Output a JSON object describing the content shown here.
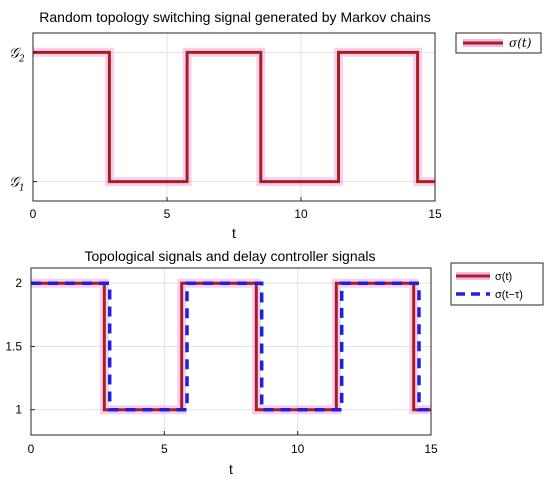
{
  "chart_data": [
    {
      "type": "line",
      "title": "Random topology switching signal generated by Markov chains",
      "xlabel": "t",
      "ylabel": "",
      "xlim": [
        0,
        15
      ],
      "ylim": [
        0.85,
        2.15
      ],
      "xticks": [
        0,
        5,
        10,
        15
      ],
      "yticks": [
        {
          "value": 1,
          "label": "𝒢",
          "sub": "1"
        },
        {
          "value": 2,
          "label": "𝒢",
          "sub": "2"
        }
      ],
      "grid": true,
      "legend_position": "outside-top-right",
      "series": [
        {
          "name": "σ(t)",
          "color": "#a8201a",
          "x": [
            0,
            2.85,
            2.85,
            5.75,
            5.75,
            8.5,
            8.5,
            11.4,
            11.4,
            14.35,
            14.35,
            15
          ],
          "y": [
            2,
            2,
            1,
            1,
            2,
            2,
            1,
            1,
            2,
            2,
            1,
            1
          ]
        }
      ]
    },
    {
      "type": "line",
      "title": "Topological signals and delay controller signals",
      "xlabel": "t",
      "ylabel": "",
      "xlim": [
        0,
        15
      ],
      "ylim": [
        0.8,
        2.12
      ],
      "xticks": [
        0,
        5,
        10,
        15
      ],
      "yticks": [
        {
          "value": 1,
          "label": "1"
        },
        {
          "value": 1.5,
          "label": "1.5"
        },
        {
          "value": 2,
          "label": "2"
        }
      ],
      "grid": true,
      "legend_position": "outside-top-right",
      "series": [
        {
          "name": "σ(t)",
          "color": "#a8201a",
          "x": [
            0,
            2.75,
            2.75,
            5.65,
            5.65,
            8.45,
            8.45,
            11.45,
            11.45,
            14.35,
            14.35,
            15
          ],
          "y": [
            2,
            2,
            1,
            1,
            2,
            2,
            1,
            1,
            2,
            2,
            1,
            1
          ]
        },
        {
          "name": "σ(t−τ)",
          "color": "#1f1fe0",
          "x": [
            0,
            2.95,
            2.95,
            5.85,
            5.85,
            8.65,
            8.65,
            11.65,
            11.65,
            14.55,
            14.55,
            15
          ],
          "y": [
            2,
            2,
            1,
            1,
            2,
            2,
            1,
            1,
            2,
            2,
            1,
            1
          ]
        }
      ]
    }
  ]
}
